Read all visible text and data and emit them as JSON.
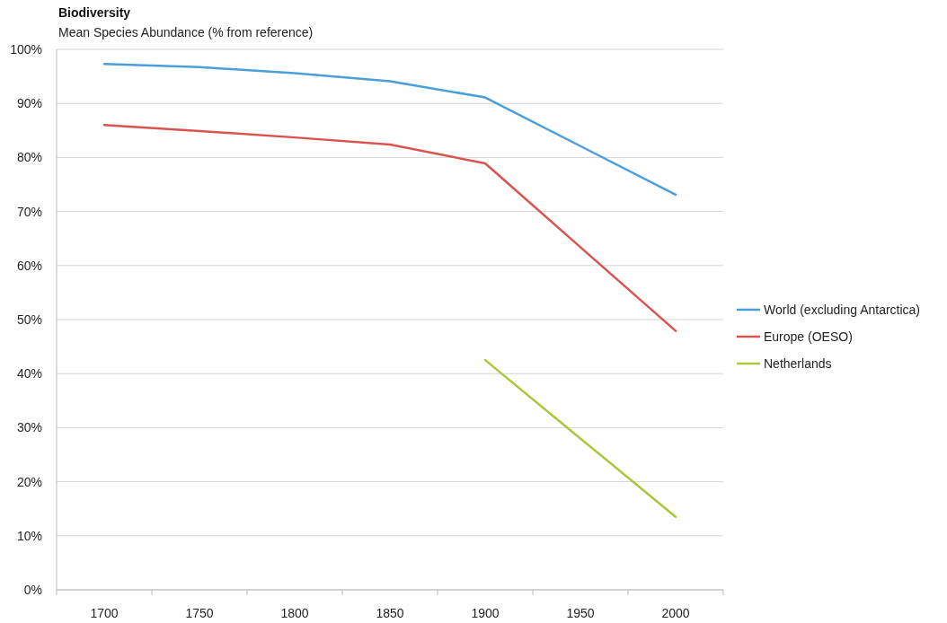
{
  "chart_data": {
    "type": "line",
    "title": "Biodiversity",
    "subtitle": "Mean Species Abundance (% from reference)",
    "categories": [
      "1700",
      "1750",
      "1800",
      "1850",
      "1900",
      "1950",
      "2000"
    ],
    "series": [
      {
        "name": "World (excluding Antarctica)",
        "color": "#4a9fd8",
        "values": [
          97.3,
          96.7,
          95.6,
          94.1,
          91.1,
          82.1,
          73.1
        ]
      },
      {
        "name": "Europe (OESO)",
        "color": "#d9534f",
        "values": [
          86,
          84.9,
          83.7,
          82.4,
          78.9,
          63.4,
          47.9
        ]
      },
      {
        "name": "Netherlands",
        "color": "#a8c83a",
        "values": [
          null,
          null,
          null,
          null,
          42.5,
          28,
          13.5
        ]
      }
    ],
    "ylim": [
      0,
      100
    ],
    "yticks": [
      {
        "value": 0,
        "label": "0%"
      },
      {
        "value": 10,
        "label": "10%"
      },
      {
        "value": 20,
        "label": "20%"
      },
      {
        "value": 30,
        "label": "30%"
      },
      {
        "value": 40,
        "label": "40%"
      },
      {
        "value": 50,
        "label": "50%"
      },
      {
        "value": 60,
        "label": "60%"
      },
      {
        "value": 70,
        "label": "70%"
      },
      {
        "value": 80,
        "label": "80%"
      },
      {
        "value": 90,
        "label": "90%"
      },
      {
        "value": 100,
        "label": "100%"
      }
    ],
    "grid": "y",
    "legend": "right",
    "marker": "none",
    "line_style": "solid"
  }
}
